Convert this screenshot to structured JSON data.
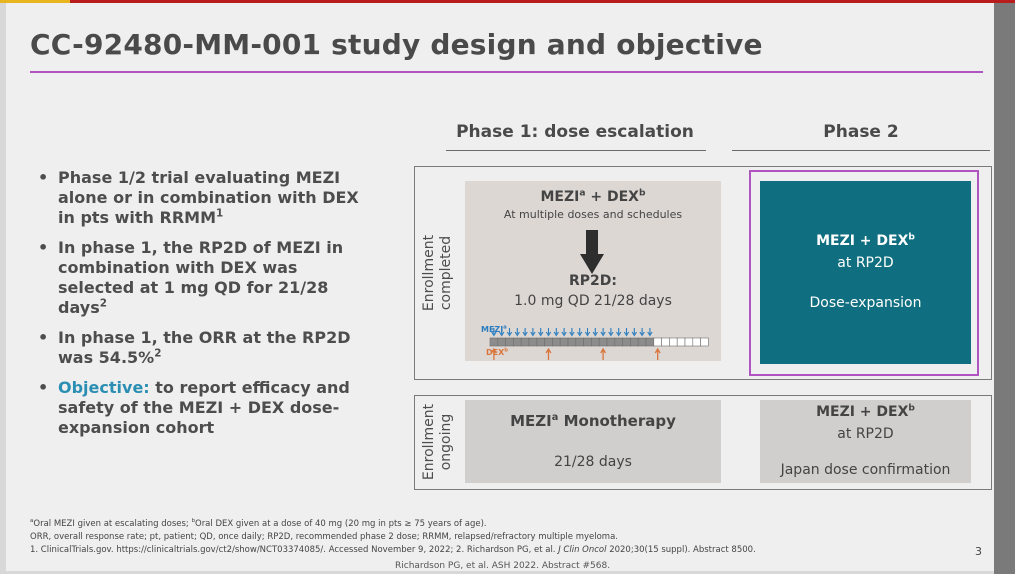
{
  "title": "CC-92480-MM-001 study design and objective",
  "phases": {
    "phase1": "Phase 1: dose escalation",
    "phase2": "Phase 2"
  },
  "bullets": [
    "Phase 1/2 trial evaluating MEZI alone or in combination with DEX in pts with RRMM",
    "In phase 1, the RP2D of MEZI in combination with DEX was selected at 1 mg QD for 21/28 days",
    "In phase 1, the ORR at the RP2D was 54.5%",
    "to report efficacy and safety of the MEZI + DEX dose-expansion cohort"
  ],
  "bullet_sups": [
    "1",
    "2",
    "2"
  ],
  "objective_label": "Objective:",
  "rows": {
    "completed": [
      "Enrollment",
      "completed"
    ],
    "ongoing": [
      "Enrollment",
      "ongoing"
    ]
  },
  "phase1_box": {
    "title_a": "MEZI",
    "title_a_sup": "a",
    "plus": " + DEX",
    "plus_sup": "b",
    "subtitle": "At multiple doses and schedules",
    "rp2d_title": "RP2D:",
    "rp2d_value": "1.0 mg QD 21/28 days",
    "mezi_label": "MEZI",
    "mezi_sup": "a",
    "dex_label": "DEX",
    "dex_sup": "b"
  },
  "phase2_box": {
    "line1": "MEZI + DEX",
    "line1_sup": "b",
    "line2": "at RP2D",
    "line3": "Dose-expansion"
  },
  "ongoing_p1": {
    "line1_a": "MEZI",
    "line1_sup": "a",
    "line1_b": " Monotherapy",
    "line2": "21/28 days"
  },
  "ongoing_p2": {
    "line1": "MEZI + DEX",
    "line1_sup": "b",
    "line2": "at RP2D",
    "line3": "Japan dose confirmation"
  },
  "footnotes": [
    "Oral MEZI given at escalating doses; ",
    "Oral DEX given at a dose of 40 mg (20 mg in pts ≥ 75 years of age).",
    "ORR, overall response rate; pt, patient; QD, once daily; RP2D, recommended phase 2 dose; RRMM, relapsed/refractory multiple myeloma.",
    "1. ClinicalTrials.gov. https://clinicaltrials.gov/ct2/show/NCT03374085/. Accessed November 9, 2022; 2. Richardson PG, et al. ",
    "J Clin Oncol",
    " 2020;30(15 suppl). Abstract 8500."
  ],
  "footnote_sups": [
    "a",
    "b"
  ],
  "page_number": "3",
  "citation": "Richardson PG, et al. ASH 2022. Abstract #568.",
  "colors": {
    "accent_purple": "#b054c2",
    "teal": "#0f6e7f",
    "objective_blue": "#2b8fb4",
    "mezi_blue": "#2a7dc0",
    "dex_orange": "#d9753b"
  }
}
